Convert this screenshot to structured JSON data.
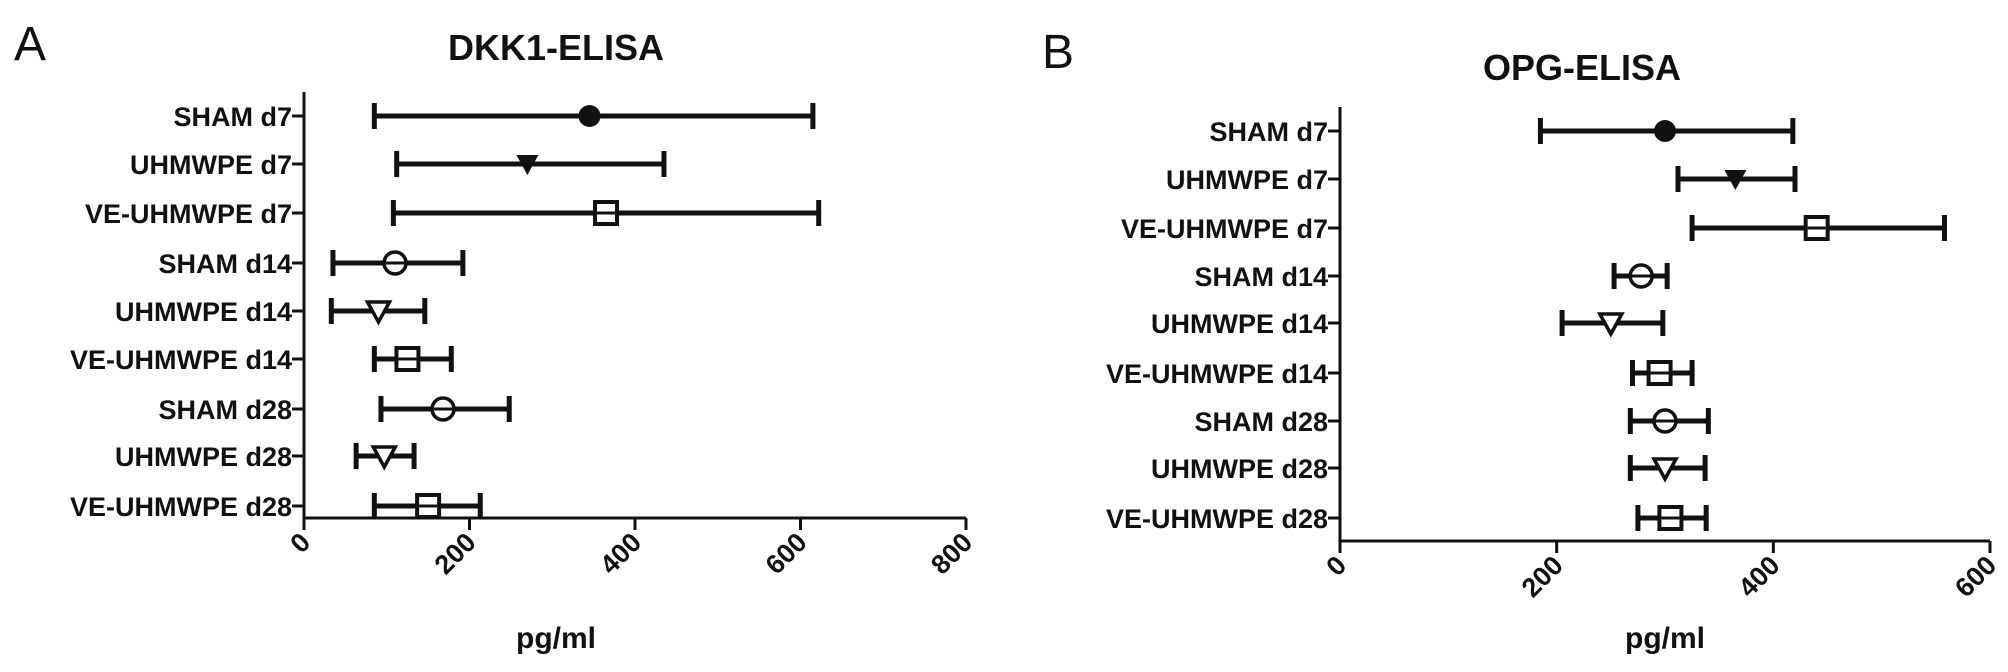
{
  "chart_data": [
    {
      "type": "scatter",
      "panel": "A",
      "title": "DKK1-ELISA",
      "xlabel": "pg/ml",
      "xlim": [
        0,
        800
      ],
      "xticks": [
        0,
        200,
        400,
        600,
        800
      ],
      "categories": [
        "SHAM d7",
        "UHMWPE d7",
        "VE-UHMWPE d7",
        "SHAM d14",
        "UHMWPE d14",
        "VE-UHMWPE d14",
        "SHAM d28",
        "UHMWPE d28",
        "VE-UHMWPE d28"
      ],
      "markers": [
        "filled-circle",
        "filled-triangle-down",
        "square-open",
        "circle-open",
        "triangle-down-open",
        "square-open",
        "circle-open",
        "triangle-down-open",
        "square-open"
      ],
      "mean": [
        345,
        270,
        365,
        110,
        90,
        125,
        168,
        97,
        150
      ],
      "low": [
        85,
        112,
        108,
        35,
        33,
        85,
        93,
        63,
        85
      ],
      "high": [
        615,
        435,
        622,
        192,
        146,
        178,
        248,
        133,
        213
      ],
      "grid": false
    },
    {
      "type": "scatter",
      "panel": "B",
      "title": "OPG-ELISA",
      "xlabel": "pg/ml",
      "xlim": [
        0,
        600
      ],
      "xticks": [
        0,
        200,
        400,
        600
      ],
      "categories": [
        "SHAM d7",
        "UHMWPE d7",
        "VE-UHMWPE d7",
        "SHAM d14",
        "UHMWPE d14",
        "VE-UHMWPE d14",
        "SHAM d28",
        "UHMWPE d28",
        "VE-UHMWPE d28"
      ],
      "markers": [
        "filled-circle",
        "filled-triangle-down",
        "square-open",
        "circle-open",
        "triangle-down-open",
        "square-open",
        "circle-open",
        "triangle-down-open",
        "square-open"
      ],
      "mean": [
        300,
        365,
        440,
        278,
        250,
        295,
        300,
        300,
        305
      ],
      "low": [
        185,
        312,
        325,
        253,
        205,
        270,
        268,
        268,
        275
      ],
      "high": [
        418,
        420,
        558,
        302,
        298,
        325,
        340,
        337,
        338
      ],
      "grid": false
    }
  ]
}
